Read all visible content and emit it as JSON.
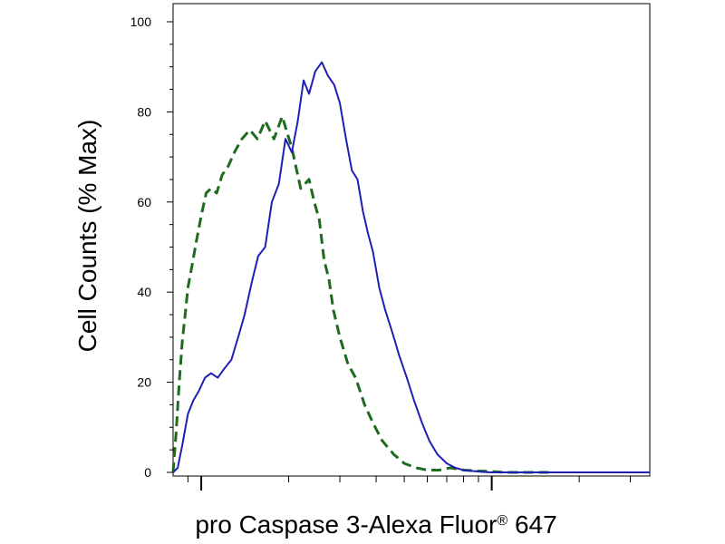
{
  "chart_data": {
    "type": "line",
    "title": "",
    "ylabel": "Cell Counts (% Max)",
    "xlabel": "pro Caspase 3-Alexa Fluor",
    "xlabel_superscript": "®",
    "xlabel_suffix": " 647",
    "x_scale": "log",
    "x_range": [
      80,
      3500
    ],
    "ylim": [
      0,
      100
    ],
    "y_ticks": [
      0,
      20,
      40,
      60,
      80,
      100
    ],
    "y_tick_labels": [
      "0",
      "20",
      "40",
      "60",
      "80",
      "100"
    ],
    "x_major_ticks": [
      100,
      1000
    ],
    "x_minor_ticks": [
      90,
      200,
      300,
      400,
      500,
      600,
      700,
      800,
      900,
      2000,
      3000
    ],
    "grid": false,
    "legend": "none",
    "series": [
      {
        "style": "dashed",
        "color": "#1e6b1e",
        "x": [
          80,
          82,
          84,
          86,
          88,
          90,
          93,
          96,
          100,
          104,
          108,
          113,
          118,
          124,
          130,
          138,
          147,
          156,
          166,
          178,
          190,
          205,
          220,
          235,
          245,
          255,
          265,
          275,
          285,
          300,
          320,
          340,
          365,
          390,
          420,
          460,
          500,
          550,
          600,
          660,
          720,
          800,
          900,
          1000,
          1100,
          1250,
          1400,
          1600
        ],
        "y": [
          0,
          9,
          20,
          29,
          35,
          41,
          46,
          51,
          57,
          62,
          63,
          62,
          66,
          68,
          71,
          74,
          76,
          74,
          78,
          74,
          79,
          72,
          63,
          65,
          60,
          56,
          47,
          43,
          36,
          30,
          24,
          21,
          15,
          11,
          7,
          4,
          2,
          1,
          0.5,
          0.5,
          1,
          0.5,
          0.3,
          0.2,
          0,
          0,
          0,
          0
        ]
      },
      {
        "style": "solid",
        "color": "#1f1fb4",
        "x": [
          80,
          83,
          86,
          90,
          94,
          98,
          103,
          108,
          114,
          120,
          127,
          134,
          141,
          149,
          157,
          166,
          175,
          185,
          195,
          205,
          215,
          225,
          235,
          247,
          260,
          273,
          287,
          300,
          315,
          330,
          345,
          360,
          375,
          390,
          410,
          430,
          455,
          480,
          510,
          540,
          575,
          610,
          650,
          700,
          750,
          800,
          860,
          930,
          1000,
          1100,
          1250,
          1400,
          1600,
          2000,
          2500,
          3000,
          3500
        ],
        "y": [
          0,
          1,
          6,
          13,
          16,
          18,
          21,
          22,
          21,
          23,
          25,
          30,
          35,
          42,
          48,
          50,
          60,
          64,
          74,
          71,
          78,
          87,
          84,
          89,
          91,
          88,
          86,
          82,
          74,
          67,
          65,
          58,
          53,
          49,
          41,
          36,
          31,
          26,
          21,
          16,
          11,
          7,
          4,
          2,
          1,
          0.5,
          0.3,
          0.1,
          0,
          0,
          0,
          0,
          0,
          0,
          0,
          0,
          0
        ]
      }
    ]
  }
}
